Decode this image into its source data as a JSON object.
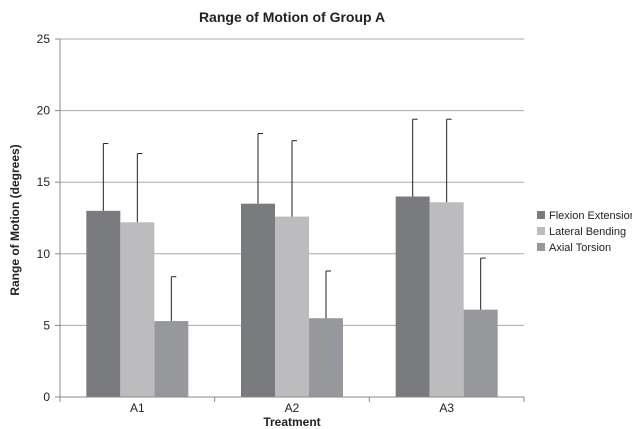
{
  "chart_data": {
    "type": "bar",
    "title": "Range of Motion of Group A",
    "xlabel": "Treatment",
    "ylabel": "Range of Motion (degrees)",
    "categories": [
      "A1",
      "A2",
      "A3"
    ],
    "ylim": [
      0,
      25
    ],
    "yticks": [
      "0",
      "5",
      "10",
      "15",
      "20",
      "25"
    ],
    "grid": true,
    "legend_position": "right",
    "series": [
      {
        "name": "Flexion Extension",
        "color": "#7a7b7f",
        "values": [
          13.0,
          13.5,
          14.0
        ],
        "error": [
          4.7,
          4.9,
          5.4
        ]
      },
      {
        "name": "Lateral Bending",
        "color": "#bcbcbf",
        "values": [
          12.2,
          12.6,
          13.6
        ],
        "error": [
          4.8,
          5.3,
          5.8
        ]
      },
      {
        "name": "Axial Torsion",
        "color": "#97989b",
        "values": [
          5.3,
          5.5,
          6.1
        ],
        "error": [
          3.1,
          3.3,
          3.6
        ]
      }
    ]
  }
}
